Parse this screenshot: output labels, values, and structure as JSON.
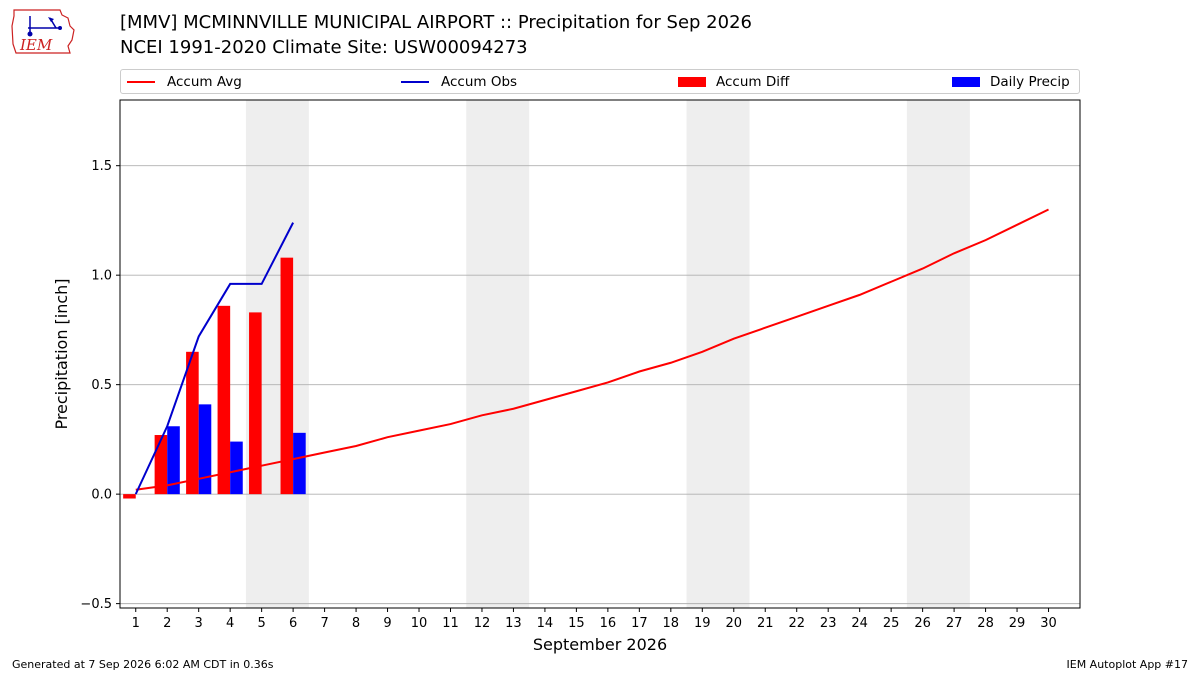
{
  "header": {
    "title_line1": "[MMV] MCMINNVILLE MUNICIPAL AIRPORT :: Precipitation for Sep 2026",
    "title_line2": "NCEI 1991-2020 Climate Site: USW00094273",
    "logo_text": "IEM"
  },
  "legend": {
    "items": [
      {
        "label": "Accum Avg",
        "kind": "line",
        "color": "#ff0000"
      },
      {
        "label": "Accum Obs",
        "kind": "line",
        "color": "#0000cc"
      },
      {
        "label": "Accum Diff",
        "kind": "patch",
        "color": "#ff0000"
      },
      {
        "label": "Daily Precip",
        "kind": "patch",
        "color": "#0000ff"
      }
    ]
  },
  "footer": {
    "generated": "Generated at 7 Sep 2026 6:02 AM CDT in 0.36s",
    "app": "IEM Autoplot App #17"
  },
  "chart_data": {
    "type": "bar",
    "xlabel": "September 2026",
    "ylabel": "Precipitation [inch]",
    "xlim": [
      0.5,
      31
    ],
    "ylim": [
      -0.52,
      1.8
    ],
    "x_ticks": [
      1,
      2,
      3,
      4,
      5,
      6,
      7,
      8,
      9,
      10,
      11,
      12,
      13,
      14,
      15,
      16,
      17,
      18,
      19,
      20,
      21,
      22,
      23,
      24,
      25,
      26,
      27,
      28,
      29,
      30
    ],
    "y_ticks": [
      -0.5,
      0.0,
      0.5,
      1.0,
      1.5
    ],
    "y_tick_labels": [
      "−0.5",
      "0.0",
      "0.5",
      "1.0",
      "1.5"
    ],
    "grid": "y",
    "weekend_shading": [
      [
        5,
        6
      ],
      [
        12,
        13
      ],
      [
        19,
        20
      ],
      [
        26,
        27
      ]
    ],
    "colors": {
      "avg": "#ff0000",
      "obs": "#0000cc",
      "diff": "#ff0000",
      "daily": "#0000ff",
      "shade": "#eeeeee",
      "grid": "#b0b0b0"
    },
    "days": [
      1,
      2,
      3,
      4,
      5,
      6,
      7,
      8,
      9,
      10,
      11,
      12,
      13,
      14,
      15,
      16,
      17,
      18,
      19,
      20,
      21,
      22,
      23,
      24,
      25,
      26,
      27,
      28,
      29,
      30
    ],
    "series": [
      {
        "name": "Accum Avg",
        "kind": "line",
        "values": [
          0.02,
          0.04,
          0.07,
          0.1,
          0.13,
          0.16,
          0.19,
          0.22,
          0.26,
          0.29,
          0.32,
          0.36,
          0.39,
          0.43,
          0.47,
          0.51,
          0.56,
          0.6,
          0.65,
          0.71,
          0.76,
          0.81,
          0.86,
          0.91,
          0.97,
          1.03,
          1.1,
          1.16,
          1.23,
          1.3
        ]
      },
      {
        "name": "Accum Obs",
        "kind": "line",
        "values": [
          0.0,
          0.31,
          0.72,
          0.96,
          0.96,
          1.24
        ]
      },
      {
        "name": "Accum Diff",
        "kind": "bar",
        "values": [
          -0.02,
          0.27,
          0.65,
          0.86,
          0.83,
          1.08
        ]
      },
      {
        "name": "Daily Precip",
        "kind": "bar",
        "values": [
          0.0,
          0.31,
          0.41,
          0.24,
          0.0,
          0.28
        ]
      }
    ]
  }
}
